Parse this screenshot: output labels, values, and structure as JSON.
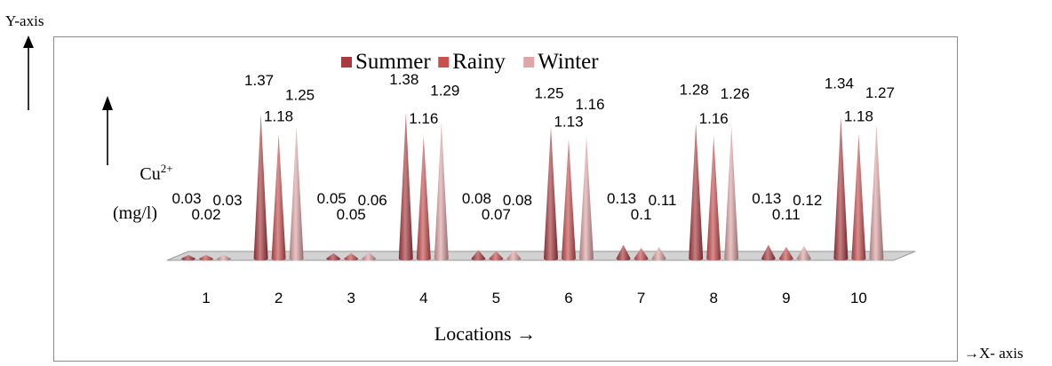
{
  "outer": {
    "y_axis_label": "Y-axis",
    "x_axis_label": "→X- axis"
  },
  "chart_data": {
    "type": "bar",
    "bar_style": "cone-3d",
    "categories": [
      "1",
      "2",
      "3",
      "4",
      "5",
      "6",
      "7",
      "8",
      "9",
      "10"
    ],
    "series": [
      {
        "name": "Summer",
        "color": "#a93a3f",
        "values": [
          0.03,
          1.37,
          0.05,
          1.38,
          0.08,
          1.25,
          0.13,
          1.28,
          0.13,
          1.34
        ]
      },
      {
        "name": "Rainy",
        "color": "#c9504f",
        "values": [
          0.02,
          1.18,
          0.05,
          1.16,
          0.07,
          1.13,
          0.1,
          1.16,
          0.11,
          1.18
        ]
      },
      {
        "name": "Winter",
        "color": "#e0a5a6",
        "values": [
          0.03,
          1.25,
          0.06,
          1.29,
          0.08,
          1.16,
          0.11,
          1.26,
          0.12,
          1.27
        ]
      }
    ],
    "ylabel_line1": "Cu",
    "ylabel_sup": "2+",
    "ylabel_line2": "(mg/l)",
    "xlabel": "Locations →",
    "legend_position": "top-center",
    "grid": false,
    "ylim": [
      0,
      1.5
    ]
  }
}
